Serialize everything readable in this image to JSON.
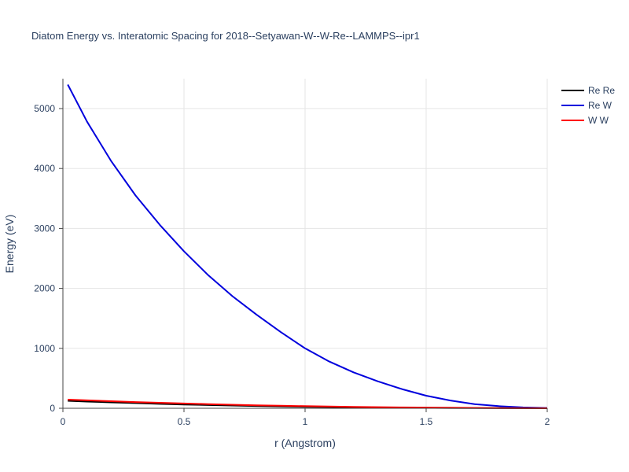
{
  "chart_data": {
    "type": "line",
    "title": "Diatom Energy vs. Interatomic Spacing for 2018--Setyawan-W--W-Re--LAMMPS--ipr1",
    "xlabel": "r (Angstrom)",
    "ylabel": "Energy (eV)",
    "xlim": [
      0,
      2
    ],
    "ylim": [
      -30,
      5500
    ],
    "x_ticks": [
      0,
      0.5,
      1,
      1.5,
      2
    ],
    "x_tick_labels": [
      "0",
      "0.5",
      "1",
      "1.5",
      "2"
    ],
    "y_ticks": [
      0,
      1000,
      2000,
      3000,
      4000,
      5000
    ],
    "y_tick_labels": [
      "0",
      "1000",
      "2000",
      "3000",
      "4000",
      "5000"
    ],
    "grid": true,
    "legend_position": "top-right",
    "series": [
      {
        "name": "Re Re",
        "color": "#000000",
        "x": [
          0.02,
          0.1,
          0.2,
          0.3,
          0.4,
          0.5,
          0.6,
          0.7,
          0.8,
          0.9,
          1.0,
          1.2,
          1.4,
          1.6,
          1.8,
          2.0
        ],
        "y": [
          125,
          112,
          98,
          86,
          74,
          63,
          54,
          46,
          38,
          31,
          25,
          16,
          9,
          5,
          2,
          0
        ]
      },
      {
        "name": "Re W",
        "color": "#0000dd",
        "x": [
          0.02,
          0.1,
          0.2,
          0.3,
          0.4,
          0.5,
          0.6,
          0.7,
          0.8,
          0.9,
          1.0,
          1.1,
          1.2,
          1.3,
          1.4,
          1.5,
          1.6,
          1.7,
          1.8,
          1.9,
          2.0
        ],
        "y": [
          5400,
          4780,
          4120,
          3550,
          3060,
          2620,
          2220,
          1870,
          1560,
          1270,
          1000,
          780,
          600,
          450,
          320,
          210,
          130,
          70,
          35,
          15,
          5
        ]
      },
      {
        "name": "W W",
        "color": "#ff0000",
        "x": [
          0.02,
          0.1,
          0.2,
          0.3,
          0.4,
          0.5,
          0.6,
          0.7,
          0.8,
          0.9,
          1.0,
          1.2,
          1.4,
          1.6,
          1.8,
          2.0
        ],
        "y": [
          145,
          132,
          118,
          104,
          92,
          80,
          69,
          59,
          50,
          42,
          35,
          24,
          15,
          9,
          4,
          1
        ]
      }
    ]
  }
}
